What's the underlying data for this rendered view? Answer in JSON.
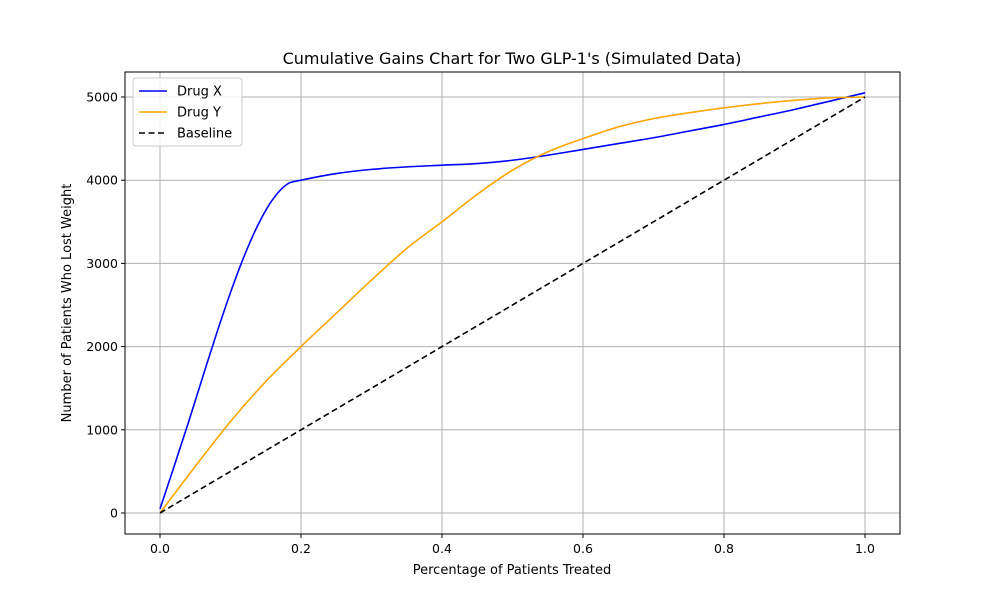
{
  "chart_data": {
    "type": "line",
    "title": "Cumulative Gains Chart for Two GLP-1's (Simulated Data)",
    "xlabel": "Percentage of Patients Treated",
    "ylabel": "Number of Patients Who Lost Weight",
    "xlim": [
      -0.05,
      1.05
    ],
    "ylim": [
      -250,
      5300
    ],
    "xticks": [
      0.0,
      0.2,
      0.4,
      0.6,
      0.8,
      1.0
    ],
    "xtick_labels": [
      "0.0",
      "0.2",
      "0.4",
      "0.6",
      "0.8",
      "1.0"
    ],
    "yticks": [
      0,
      1000,
      2000,
      3000,
      4000,
      5000
    ],
    "ytick_labels": [
      "0",
      "1000",
      "2000",
      "3000",
      "4000",
      "5000"
    ],
    "grid": true,
    "legend_position": "upper left",
    "series": [
      {
        "name": "Drug X",
        "color": "#0000ff",
        "style": "solid",
        "x": [
          0.0,
          0.02,
          0.04,
          0.06,
          0.08,
          0.1,
          0.12,
          0.14,
          0.16,
          0.18,
          0.2,
          0.25,
          0.3,
          0.35,
          0.4,
          0.45,
          0.5,
          0.55,
          0.6,
          0.65,
          0.7,
          0.75,
          0.8,
          0.85,
          0.9,
          0.95,
          1.0
        ],
        "y": [
          50,
          560,
          1080,
          1620,
          2150,
          2650,
          3100,
          3480,
          3770,
          3950,
          4000,
          4080,
          4130,
          4160,
          4180,
          4200,
          4240,
          4300,
          4370,
          4440,
          4510,
          4590,
          4670,
          4760,
          4850,
          4950,
          5050
        ]
      },
      {
        "name": "Drug Y",
        "color": "#ffa500",
        "style": "solid",
        "x": [
          0.0,
          0.05,
          0.1,
          0.15,
          0.2,
          0.25,
          0.3,
          0.35,
          0.4,
          0.45,
          0.5,
          0.55,
          0.6,
          0.65,
          0.7,
          0.75,
          0.8,
          0.85,
          0.9,
          0.95,
          1.0
        ],
        "y": [
          0,
          560,
          1100,
          1580,
          2000,
          2400,
          2800,
          3180,
          3500,
          3830,
          4120,
          4340,
          4500,
          4640,
          4740,
          4810,
          4870,
          4920,
          4960,
          4990,
          5000
        ]
      },
      {
        "name": "Baseline",
        "color": "#000000",
        "style": "dashed",
        "x": [
          0.0,
          1.0
        ],
        "y": [
          0,
          5000
        ]
      }
    ]
  }
}
